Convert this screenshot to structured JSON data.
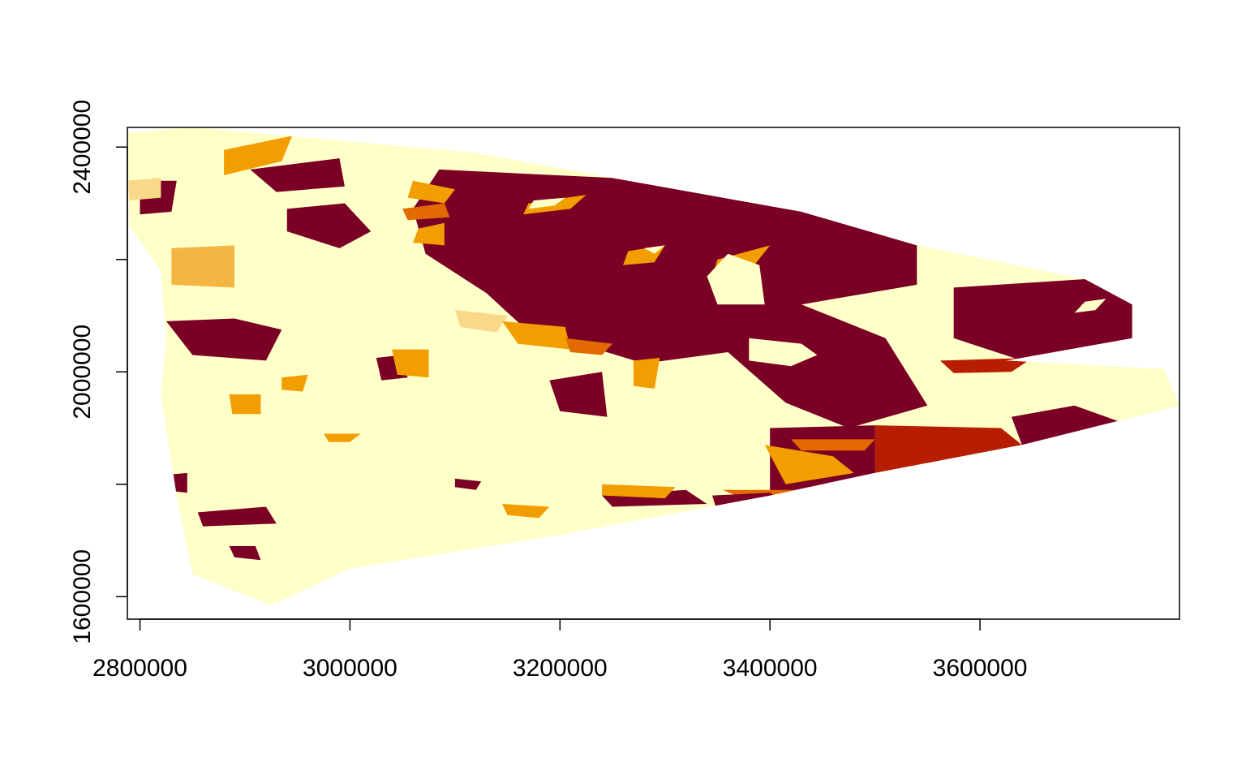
{
  "chart_data": {
    "type": "heatmap",
    "title": "",
    "xlabel": "",
    "ylabel": "",
    "xlim": [
      2788000,
      3790000
    ],
    "ylim": [
      1560000,
      2435000
    ],
    "x_ticks": [
      {
        "value": 2800000,
        "label": "2800000"
      },
      {
        "value": 3000000,
        "label": "3000000"
      },
      {
        "value": 3200000,
        "label": "3200000"
      },
      {
        "value": 3400000,
        "label": "3400000"
      },
      {
        "value": 3600000,
        "label": "3600000"
      }
    ],
    "y_ticks": [
      {
        "value": 1600000,
        "label": "1600000"
      },
      {
        "value": 1800000,
        "label": "1800000"
      },
      {
        "value": 2000000,
        "label": "2000000"
      },
      {
        "value": 2200000,
        "label": "2200000"
      },
      {
        "value": 2400000,
        "label": "2400000"
      }
    ],
    "legend": "none",
    "grid": false,
    "palette": [
      "#FFFFC8",
      "#F9D88A",
      "#F4B542",
      "#F29D00",
      "#E36A00",
      "#B71D00",
      "#7A0026"
    ],
    "colors": {
      "axis": "#000000",
      "background": "#ffffff"
    },
    "extent_outline": [
      [
        2788000,
        2425000
      ],
      [
        2850000,
        2435000
      ],
      [
        3120000,
        2390000
      ],
      [
        3250000,
        2345000
      ],
      [
        3430000,
        2285000
      ],
      [
        3540000,
        2225000
      ],
      [
        3700000,
        2165000
      ],
      [
        3745000,
        2120000
      ],
      [
        3745000,
        2060000
      ],
      [
        3625000,
        2020000
      ],
      [
        3775000,
        2005000
      ],
      [
        3790000,
        1940000
      ],
      [
        3640000,
        1870000
      ],
      [
        3500000,
        1820000
      ],
      [
        3400000,
        1780000
      ],
      [
        3200000,
        1710000
      ],
      [
        3000000,
        1650000
      ],
      [
        2925000,
        1585000
      ],
      [
        2850000,
        1640000
      ],
      [
        2835000,
        1780000
      ],
      [
        2820000,
        1960000
      ],
      [
        2825000,
        2060000
      ],
      [
        2820000,
        2180000
      ],
      [
        2790000,
        2260000
      ]
    ],
    "zones": [
      {
        "class": 6,
        "points": [
          [
            3085000,
            2360000
          ],
          [
            3250000,
            2345000
          ],
          [
            3430000,
            2285000
          ],
          [
            3540000,
            2225000
          ],
          [
            3540000,
            2155000
          ],
          [
            3430000,
            2120000
          ],
          [
            3510000,
            2060000
          ],
          [
            3550000,
            1940000
          ],
          [
            3475000,
            1900000
          ],
          [
            3415000,
            1945000
          ],
          [
            3360000,
            2035000
          ],
          [
            3280000,
            2015000
          ],
          [
            3165000,
            2080000
          ],
          [
            3130000,
            2140000
          ],
          [
            3072000,
            2210000
          ],
          [
            3060000,
            2290000
          ]
        ]
      },
      {
        "class": 6,
        "points": [
          [
            3575000,
            2150000
          ],
          [
            3700000,
            2165000
          ],
          [
            3745000,
            2120000
          ],
          [
            3745000,
            2060000
          ],
          [
            3640000,
            2020000
          ],
          [
            3575000,
            2060000
          ]
        ]
      },
      {
        "class": 5,
        "points": [
          [
            3562000,
            2020000
          ],
          [
            3650000,
            2025000
          ],
          [
            3630000,
            2000000
          ],
          [
            3575000,
            1998000
          ]
        ]
      },
      {
        "class": 5,
        "points": [
          [
            3500000,
            1905000
          ],
          [
            3620000,
            1900000
          ],
          [
            3640000,
            1870000
          ],
          [
            3500000,
            1820000
          ]
        ]
      },
      {
        "class": 6,
        "points": [
          [
            3630000,
            1920000
          ],
          [
            3690000,
            1940000
          ],
          [
            3750000,
            1900000
          ],
          [
            3735000,
            1860000
          ],
          [
            3640000,
            1870000
          ]
        ]
      },
      {
        "class": 6,
        "points": [
          [
            3400000,
            1900000
          ],
          [
            3500000,
            1905000
          ],
          [
            3500000,
            1820000
          ],
          [
            3400000,
            1780000
          ]
        ]
      },
      {
        "class": 3,
        "points": [
          [
            3395000,
            1870000
          ],
          [
            3460000,
            1850000
          ],
          [
            3480000,
            1820000
          ],
          [
            3415000,
            1800000
          ]
        ]
      },
      {
        "class": 4,
        "points": [
          [
            3355000,
            1790000
          ],
          [
            3430000,
            1790000
          ],
          [
            3460000,
            1745000
          ],
          [
            3400000,
            1755000
          ]
        ]
      },
      {
        "class": 6,
        "points": [
          [
            3345000,
            1780000
          ],
          [
            3400000,
            1785000
          ],
          [
            3430000,
            1745000
          ],
          [
            3350000,
            1750000
          ]
        ]
      },
      {
        "class": 6,
        "points": [
          [
            2800000,
            2340000
          ],
          [
            2835000,
            2340000
          ],
          [
            2830000,
            2285000
          ],
          [
            2800000,
            2280000
          ]
        ]
      },
      {
        "class": 6,
        "points": [
          [
            2905000,
            2360000
          ],
          [
            2990000,
            2380000
          ],
          [
            2995000,
            2330000
          ],
          [
            2930000,
            2320000
          ]
        ]
      },
      {
        "class": 6,
        "points": [
          [
            2940000,
            2290000
          ],
          [
            2995000,
            2300000
          ],
          [
            3020000,
            2250000
          ],
          [
            2990000,
            2220000
          ],
          [
            2940000,
            2250000
          ]
        ]
      },
      {
        "class": 6,
        "points": [
          [
            2825000,
            2090000
          ],
          [
            2890000,
            2095000
          ],
          [
            2935000,
            2075000
          ],
          [
            2920000,
            2020000
          ],
          [
            2850000,
            2030000
          ]
        ]
      },
      {
        "class": 6,
        "points": [
          [
            3025000,
            2025000
          ],
          [
            3050000,
            2030000
          ],
          [
            3055000,
            1990000
          ],
          [
            3030000,
            1985000
          ]
        ]
      },
      {
        "class": 6,
        "points": [
          [
            3190000,
            1985000
          ],
          [
            3240000,
            2000000
          ],
          [
            3245000,
            1920000
          ],
          [
            3200000,
            1930000
          ]
        ]
      },
      {
        "class": 6,
        "points": [
          [
            3240000,
            1780000
          ],
          [
            3320000,
            1790000
          ],
          [
            3340000,
            1765000
          ],
          [
            3250000,
            1760000
          ]
        ]
      },
      {
        "class": 6,
        "points": [
          [
            2855000,
            1750000
          ],
          [
            2920000,
            1760000
          ],
          [
            2930000,
            1730000
          ],
          [
            2860000,
            1725000
          ]
        ]
      },
      {
        "class": 6,
        "points": [
          [
            2885000,
            1690000
          ],
          [
            2910000,
            1690000
          ],
          [
            2915000,
            1665000
          ],
          [
            2890000,
            1670000
          ]
        ]
      },
      {
        "class": 6,
        "points": [
          [
            2815000,
            1815000
          ],
          [
            2845000,
            1820000
          ],
          [
            2845000,
            1785000
          ],
          [
            2820000,
            1790000
          ]
        ]
      },
      {
        "class": 6,
        "points": [
          [
            3100000,
            1810000
          ],
          [
            3125000,
            1805000
          ],
          [
            3120000,
            1790000
          ],
          [
            3100000,
            1795000
          ]
        ]
      },
      {
        "class": 3,
        "points": [
          [
            2880000,
            2395000
          ],
          [
            2945000,
            2420000
          ],
          [
            2935000,
            2375000
          ],
          [
            2880000,
            2350000
          ]
        ]
      },
      {
        "class": 2,
        "points": [
          [
            2830000,
            2220000
          ],
          [
            2890000,
            2225000
          ],
          [
            2890000,
            2150000
          ],
          [
            2830000,
            2155000
          ]
        ]
      },
      {
        "class": 1,
        "points": [
          [
            2788000,
            2340000
          ],
          [
            2820000,
            2345000
          ],
          [
            2820000,
            2310000
          ],
          [
            2790000,
            2305000
          ]
        ]
      },
      {
        "class": 3,
        "points": [
          [
            3060000,
            2340000
          ],
          [
            3100000,
            2325000
          ],
          [
            3090000,
            2300000
          ],
          [
            3055000,
            2310000
          ]
        ]
      },
      {
        "class": 3,
        "points": [
          [
            3065000,
            2255000
          ],
          [
            3090000,
            2265000
          ],
          [
            3090000,
            2225000
          ],
          [
            3060000,
            2230000
          ]
        ]
      },
      {
        "class": 4,
        "points": [
          [
            3050000,
            2290000
          ],
          [
            3090000,
            2300000
          ],
          [
            3095000,
            2275000
          ],
          [
            3055000,
            2270000
          ]
        ]
      },
      {
        "class": 1,
        "points": [
          [
            3100000,
            2110000
          ],
          [
            3150000,
            2100000
          ],
          [
            3140000,
            2070000
          ],
          [
            3105000,
            2080000
          ]
        ]
      },
      {
        "class": 3,
        "points": [
          [
            3145000,
            2090000
          ],
          [
            3205000,
            2080000
          ],
          [
            3210000,
            2040000
          ],
          [
            3160000,
            2050000
          ]
        ]
      },
      {
        "class": 4,
        "points": [
          [
            3205000,
            2060000
          ],
          [
            3250000,
            2050000
          ],
          [
            3240000,
            2030000
          ],
          [
            3210000,
            2035000
          ]
        ]
      },
      {
        "class": 3,
        "points": [
          [
            3040000,
            2040000
          ],
          [
            3075000,
            2040000
          ],
          [
            3075000,
            1990000
          ],
          [
            3045000,
            1995000
          ]
        ]
      },
      {
        "class": 3,
        "points": [
          [
            3270000,
            2020000
          ],
          [
            3295000,
            2025000
          ],
          [
            3290000,
            1970000
          ],
          [
            3270000,
            1975000
          ]
        ]
      },
      {
        "class": 3,
        "points": [
          [
            2885000,
            1960000
          ],
          [
            2915000,
            1960000
          ],
          [
            2915000,
            1925000
          ],
          [
            2888000,
            1925000
          ]
        ]
      },
      {
        "class": 3,
        "points": [
          [
            3350000,
            2200000
          ],
          [
            3400000,
            2225000
          ],
          [
            3385000,
            2190000
          ],
          [
            3345000,
            2170000
          ]
        ]
      },
      {
        "class": 3,
        "points": [
          [
            3170000,
            2300000
          ],
          [
            3225000,
            2315000
          ],
          [
            3210000,
            2290000
          ],
          [
            3165000,
            2280000
          ]
        ]
      },
      {
        "class": 3,
        "points": [
          [
            3265000,
            2215000
          ],
          [
            3300000,
            2225000
          ],
          [
            3290000,
            2195000
          ],
          [
            3260000,
            2190000
          ]
        ]
      },
      {
        "class": 3,
        "points": [
          [
            3240000,
            1800000
          ],
          [
            3310000,
            1795000
          ],
          [
            3300000,
            1775000
          ],
          [
            3240000,
            1780000
          ]
        ]
      },
      {
        "class": 4,
        "points": [
          [
            3420000,
            1880000
          ],
          [
            3500000,
            1880000
          ],
          [
            3490000,
            1860000
          ],
          [
            3430000,
            1860000
          ]
        ]
      },
      {
        "class": 4,
        "points": [
          [
            3360000,
            1760000
          ],
          [
            3420000,
            1760000
          ],
          [
            3430000,
            1740000
          ],
          [
            3365000,
            1745000
          ]
        ]
      },
      {
        "class": 3,
        "points": [
          [
            3145000,
            1765000
          ],
          [
            3190000,
            1760000
          ],
          [
            3180000,
            1740000
          ],
          [
            3150000,
            1745000
          ]
        ]
      },
      {
        "class": 3,
        "points": [
          [
            3280000,
            1700000
          ],
          [
            3320000,
            1710000
          ],
          [
            3310000,
            1690000
          ],
          [
            3275000,
            1690000
          ]
        ]
      },
      {
        "class": 3,
        "points": [
          [
            2975000,
            1890000
          ],
          [
            3010000,
            1890000
          ],
          [
            3000000,
            1875000
          ],
          [
            2980000,
            1875000
          ]
        ]
      },
      {
        "class": 3,
        "points": [
          [
            2935000,
            1990000
          ],
          [
            2960000,
            1995000
          ],
          [
            2955000,
            1965000
          ],
          [
            2935000,
            1968000
          ]
        ]
      },
      {
        "class": 0,
        "points": [
          [
            3360000,
            2210000
          ],
          [
            3390000,
            2190000
          ],
          [
            3395000,
            2120000
          ],
          [
            3350000,
            2120000
          ],
          [
            3340000,
            2170000
          ]
        ]
      },
      {
        "class": 0,
        "points": [
          [
            3540000,
            2230000
          ],
          [
            3580000,
            2210000
          ],
          [
            3575000,
            2150000
          ],
          [
            3540000,
            2150000
          ]
        ]
      },
      {
        "class": 0,
        "points": [
          [
            3380000,
            2060000
          ],
          [
            3430000,
            2050000
          ],
          [
            3445000,
            2030000
          ],
          [
            3420000,
            2010000
          ],
          [
            3380000,
            2020000
          ]
        ]
      },
      {
        "class": 0,
        "points": [
          [
            3280000,
            2220000
          ],
          [
            3300000,
            2225000
          ],
          [
            3290000,
            2210000
          ]
        ]
      },
      {
        "class": 0,
        "points": [
          [
            3700000,
            2125000
          ],
          [
            3720000,
            2130000
          ],
          [
            3710000,
            2110000
          ],
          [
            3690000,
            2105000
          ]
        ]
      },
      {
        "class": 0,
        "points": [
          [
            3175000,
            2305000
          ],
          [
            3205000,
            2310000
          ],
          [
            3195000,
            2296000
          ],
          [
            3170000,
            2290000
          ]
        ]
      }
    ]
  }
}
